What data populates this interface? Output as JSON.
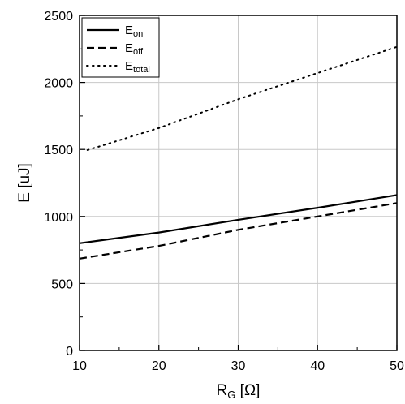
{
  "chart_data": {
    "type": "line",
    "xlabel": {
      "main": "R",
      "sub": "G",
      "unit": " [Ω]"
    },
    "ylabel": "E [uJ]",
    "xlim": [
      10,
      50
    ],
    "ylim": [
      0,
      2500
    ],
    "x_ticks": [
      10,
      20,
      30,
      40,
      50
    ],
    "x_tick_labels": [
      "10",
      "20",
      "30",
      "40",
      "50"
    ],
    "y_ticks": [
      0,
      500,
      1000,
      1500,
      2000,
      2500
    ],
    "y_tick_labels": [
      "0",
      "500",
      "1000",
      "1500",
      "2000",
      "2500"
    ],
    "grid": true,
    "legend_position": "top-left",
    "series": [
      {
        "key": "eon",
        "name_main": "E",
        "name_sub": "on",
        "style": "solid",
        "color": "#000000",
        "x": [
          10,
          20,
          30,
          40,
          50
        ],
        "y": [
          800,
          880,
          975,
          1065,
          1160
        ]
      },
      {
        "key": "eoff",
        "name_main": "E",
        "name_sub": "off",
        "style": "dashed",
        "color": "#000000",
        "x": [
          10,
          20,
          30,
          40,
          50
        ],
        "y": [
          685,
          780,
          900,
          1000,
          1100
        ]
      },
      {
        "key": "etotal",
        "name_main": "E",
        "name_sub": "total",
        "style": "dotted",
        "color": "#000000",
        "x": [
          11,
          20,
          30,
          40,
          50
        ],
        "y": [
          1495,
          1660,
          1875,
          2070,
          2265
        ]
      }
    ]
  }
}
